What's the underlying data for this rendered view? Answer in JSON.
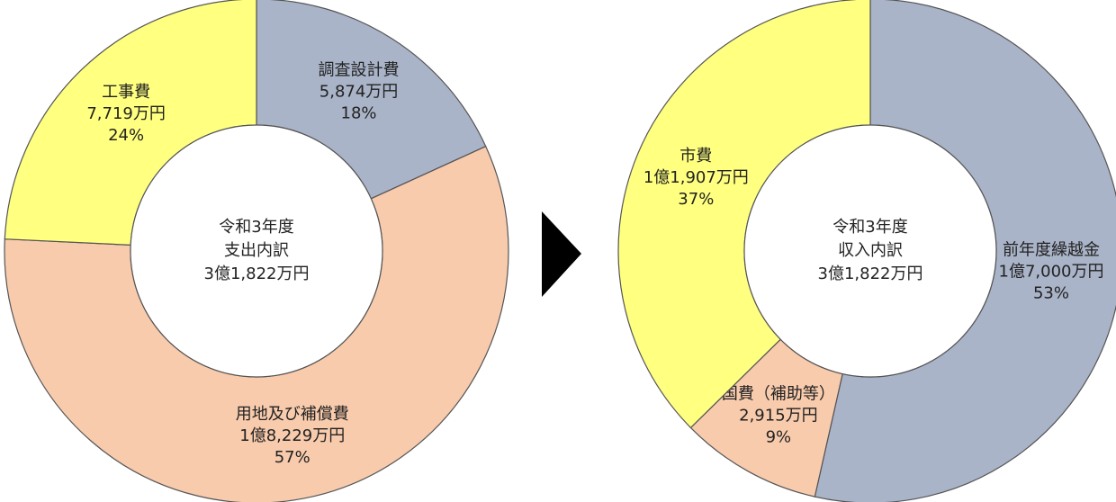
{
  "chart_data": [
    {
      "type": "donut",
      "center_label": [
        "令和3年度",
        "支出内訳",
        "3億1,822万円"
      ],
      "categories": [
        "調査設計費",
        "用地及び補償費",
        "工事費"
      ],
      "amounts": [
        "5,874万円",
        "1億8,229万円",
        "7,719万円"
      ],
      "values": [
        18,
        57,
        24
      ],
      "value_labels": [
        "18%",
        "57%",
        "24%"
      ],
      "colors": [
        "#aab4c8",
        "#f8cbad",
        "#ffff80"
      ]
    },
    {
      "type": "donut",
      "center_label": [
        "令和3年度",
        "収入内訳",
        "3億1,822万円"
      ],
      "categories": [
        "前年度繰越金",
        "国費（補助等）",
        "市費"
      ],
      "amounts": [
        "1億7,000万円",
        "2,915万円",
        "1億1,907万円"
      ],
      "values": [
        53,
        9,
        37
      ],
      "value_labels": [
        "53%",
        "9%",
        "37%"
      ],
      "colors": [
        "#aab4c8",
        "#f8cbad",
        "#ffff80"
      ]
    }
  ]
}
